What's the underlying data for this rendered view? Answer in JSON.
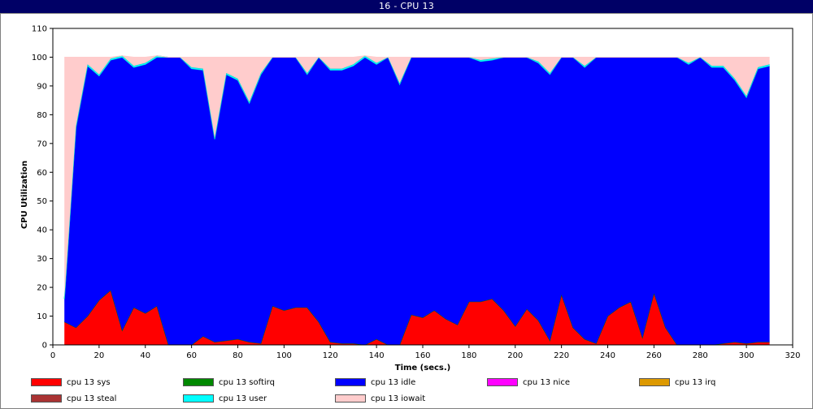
{
  "window": {
    "title": "16 - CPU 13"
  },
  "chart_data": {
    "type": "area",
    "title": "16 - CPU 13",
    "xlabel": "Time (secs.)",
    "ylabel": "CPU Utilization",
    "xlim": [
      0,
      320
    ],
    "ylim": [
      0,
      110
    ],
    "xticks": [
      0,
      20,
      40,
      60,
      80,
      100,
      120,
      140,
      160,
      180,
      200,
      220,
      240,
      260,
      280,
      300,
      320
    ],
    "yticks": [
      0,
      10,
      20,
      30,
      40,
      50,
      60,
      70,
      80,
      90,
      100,
      110
    ],
    "grid": false,
    "stacked": true,
    "legend_position": "bottom",
    "x": [
      5,
      10,
      15,
      20,
      25,
      30,
      35,
      40,
      45,
      50,
      55,
      60,
      65,
      70,
      75,
      80,
      85,
      90,
      95,
      100,
      105,
      110,
      115,
      120,
      125,
      130,
      135,
      140,
      145,
      150,
      155,
      160,
      165,
      170,
      175,
      180,
      185,
      190,
      195,
      200,
      205,
      210,
      215,
      220,
      225,
      230,
      235,
      240,
      245,
      250,
      255,
      260,
      265,
      270,
      275,
      280,
      285,
      290,
      295,
      300,
      305,
      310
    ],
    "series": [
      {
        "name": "cpu 13 sys",
        "color": "#ff0000",
        "values": [
          8,
          6,
          10,
          15.5,
          19,
          5,
          13,
          11,
          13.5,
          0,
          0,
          0,
          3,
          1,
          1.5,
          2,
          1,
          0.5,
          13.5,
          12,
          13,
          13,
          8,
          1,
          0.5,
          0.5,
          0,
          2,
          0,
          0,
          10.5,
          9.5,
          12,
          9,
          7,
          15,
          15,
          16,
          12,
          6.5,
          12.5,
          8.5,
          1.5,
          17.5,
          6,
          2,
          0.5,
          10,
          13,
          15,
          2.5,
          18,
          6,
          0,
          0,
          0,
          0,
          0.5,
          1,
          0.5,
          1,
          1
        ]
      },
      {
        "name": "cpu 13 softirq",
        "color": "#008800",
        "values": [
          0,
          0,
          0,
          0,
          0,
          0,
          0,
          0,
          0,
          0,
          0,
          0,
          0,
          0,
          0,
          0,
          0,
          0,
          0,
          0,
          0,
          0,
          0,
          0,
          0,
          0,
          0,
          0,
          0,
          0,
          0,
          0,
          0,
          0,
          0,
          0,
          0,
          0,
          0,
          0,
          0,
          0,
          0,
          0,
          0,
          0,
          0,
          0,
          0,
          0,
          0,
          0,
          0,
          0,
          0,
          0,
          0,
          0,
          0,
          0,
          0,
          0
        ]
      },
      {
        "name": "cpu 13 idle",
        "color": "#0000ff",
        "values": [
          8,
          69.5,
          87,
          78,
          80,
          95,
          83.5,
          86.5,
          86.5,
          100,
          100,
          96,
          92.5,
          70.5,
          92.5,
          90,
          83,
          93.5,
          86.5,
          88,
          87,
          81,
          92,
          94.5,
          95,
          96.5,
          100,
          95.5,
          100,
          90.5,
          89.5,
          90.5,
          88,
          91,
          93,
          85,
          83.5,
          83,
          88,
          93.5,
          87.5,
          89.5,
          92.5,
          82.5,
          94,
          94.5,
          99.5,
          90,
          87,
          85,
          97.5,
          82,
          94,
          100,
          97.5,
          100,
          96.5,
          96,
          91,
          85.5,
          95,
          96
        ]
      },
      {
        "name": "cpu 13 nice",
        "color": "#ff00ff",
        "values": [
          0,
          0,
          0,
          0,
          0,
          0,
          0,
          0,
          0,
          0,
          0,
          0,
          0,
          0,
          0,
          0,
          0,
          0,
          0,
          0,
          0,
          0,
          0,
          0,
          0,
          0,
          0,
          0,
          0,
          0,
          0,
          0,
          0,
          0,
          0,
          0,
          0,
          0,
          0,
          0,
          0,
          0,
          0,
          0,
          0,
          0,
          0,
          0,
          0,
          0,
          0,
          0,
          0,
          0,
          0,
          0,
          0,
          0,
          0,
          0,
          0,
          0
        ]
      },
      {
        "name": "cpu 13 irq",
        "color": "#dd9900",
        "values": [
          0,
          0,
          0,
          0,
          0,
          0,
          0,
          0,
          0,
          0,
          0,
          0,
          0,
          0,
          0,
          0,
          0,
          0,
          0,
          0,
          0,
          0,
          0,
          0,
          0,
          0,
          0,
          0,
          0,
          0,
          0,
          0,
          0,
          0,
          0,
          0,
          0,
          0,
          0,
          0,
          0,
          0,
          0,
          0,
          0,
          0,
          0,
          0,
          0,
          0,
          0,
          0,
          0,
          0,
          0,
          0,
          0,
          0,
          0,
          0,
          0,
          0
        ]
      },
      {
        "name": "cpu 13 steal",
        "color": "#aa3333",
        "values": [
          0,
          0,
          0,
          0,
          0,
          0,
          0,
          0,
          0,
          0,
          0,
          0,
          0,
          0,
          0,
          0,
          0,
          0,
          0,
          0,
          0,
          0,
          0,
          0,
          0,
          0,
          0,
          0,
          0,
          0,
          0,
          0,
          0,
          0,
          0,
          0,
          0,
          0,
          0,
          0,
          0,
          0,
          0,
          0,
          0,
          0,
          0,
          0,
          0,
          0,
          0,
          0,
          0,
          0,
          0,
          0,
          0,
          0,
          0,
          0,
          0,
          0
        ]
      },
      {
        "name": "cpu 13 user",
        "color": "#00ffff",
        "values": [
          0,
          0.5,
          0.5,
          0.5,
          0.5,
          0.5,
          0.5,
          0.5,
          0.5,
          0,
          0,
          0.5,
          0.5,
          0.5,
          0.5,
          0.5,
          0.5,
          0.5,
          0,
          0,
          0,
          0.5,
          0,
          0.5,
          0.5,
          0.5,
          0.5,
          0.5,
          0,
          0.5,
          0,
          0,
          0,
          0,
          0,
          0,
          0.5,
          0.5,
          0,
          0,
          0,
          0.5,
          0.5,
          0,
          0,
          0.5,
          0,
          0,
          0,
          0,
          0,
          0,
          0,
          0,
          0.5,
          0,
          0.5,
          0.5,
          0.5,
          0.5,
          0.5,
          0.5
        ]
      },
      {
        "name": "cpu 13 iowait",
        "color": "#ffcccc",
        "values": [
          84,
          24,
          2.5,
          6,
          0.5,
          0,
          3,
          2,
          0,
          0,
          0,
          3.5,
          4,
          28,
          5.5,
          7.5,
          15.5,
          5.5,
          0,
          0,
          0,
          5.5,
          0,
          4,
          4,
          2.5,
          0,
          2,
          0,
          9,
          0,
          0,
          0,
          0,
          0,
          0,
          1,
          0.5,
          0,
          0,
          0,
          1.5,
          5.5,
          0,
          0,
          3,
          0,
          0,
          0,
          0,
          0,
          0,
          0,
          0,
          2,
          0,
          3,
          3,
          7.5,
          13.5,
          3.5,
          2.5
        ]
      }
    ]
  }
}
